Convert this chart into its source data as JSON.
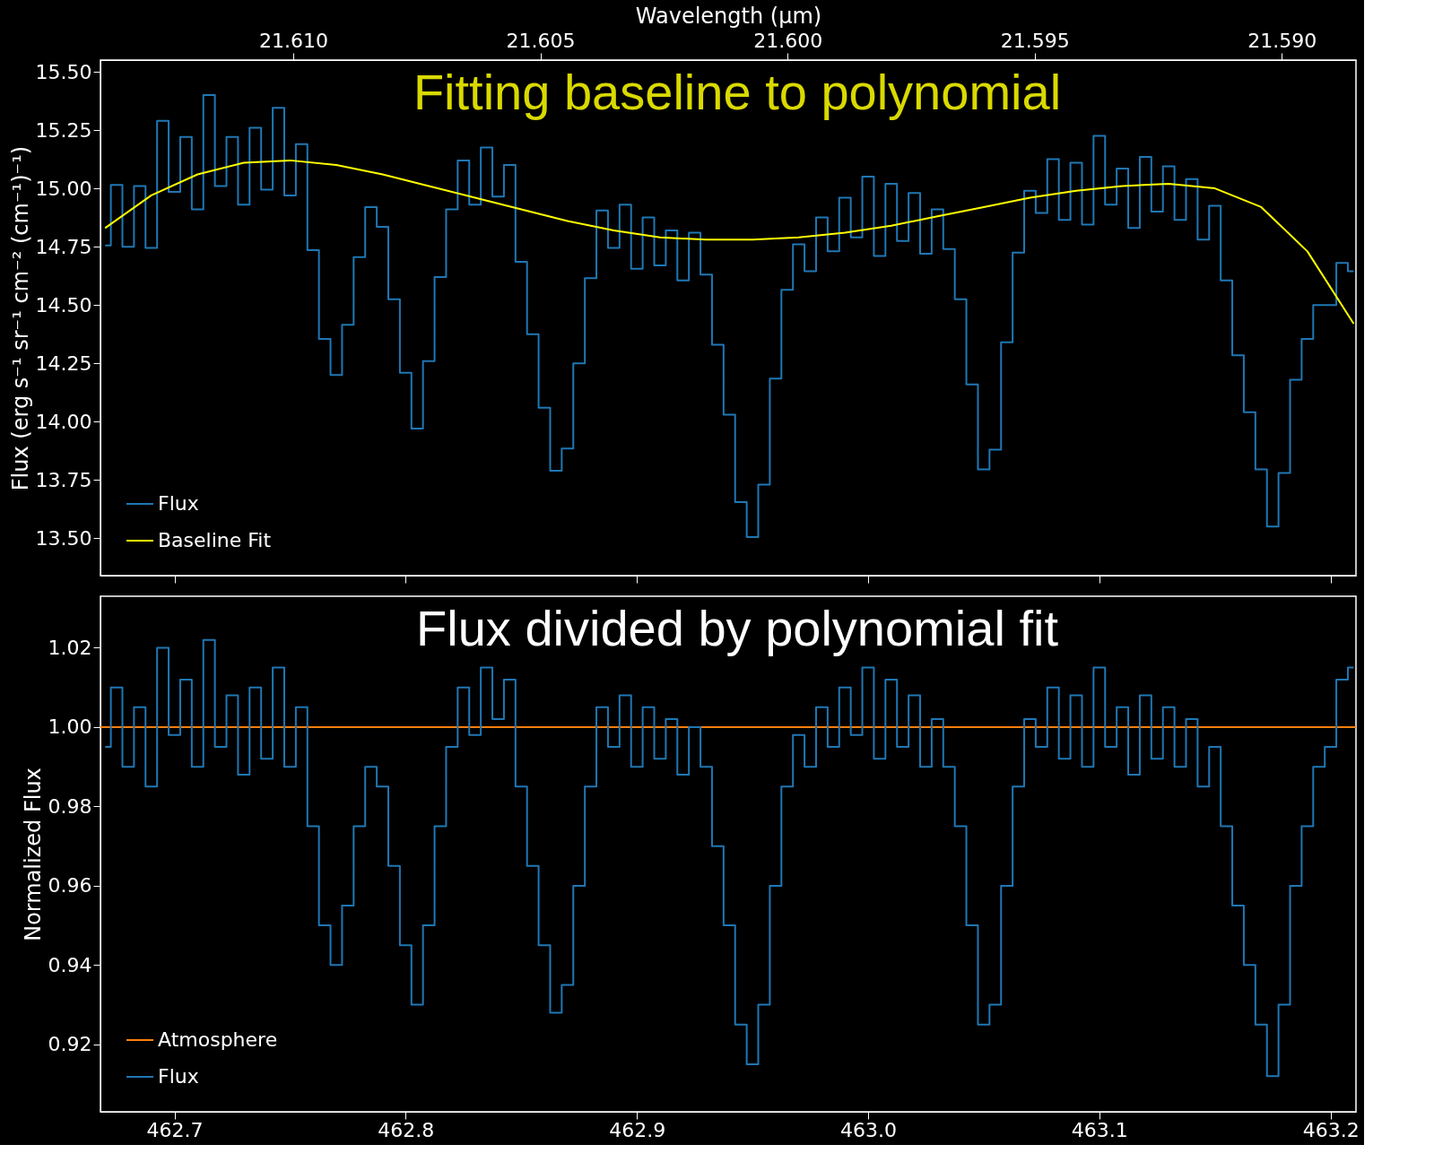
{
  "chart_data": [
    {
      "type": "step",
      "title": "Fitting baseline to polynomial",
      "ylabel": "Flux (erg s⁻¹ sr⁻¹ cm⁻² (cm⁻¹)⁻¹)",
      "x2label": "Wavelength (µm)",
      "xlim": [
        462.668,
        463.211
      ],
      "xticks": [
        {
          "value": 462.7,
          "label": null
        },
        {
          "value": 462.8,
          "label": null
        },
        {
          "value": 462.9,
          "label": null
        },
        {
          "value": 463.0,
          "label": null
        },
        {
          "value": 463.1,
          "label": null
        },
        {
          "value": 463.2,
          "label": null
        }
      ],
      "x2lim": [
        21.6139,
        21.5885
      ],
      "x2ticks": [
        {
          "value": 21.61,
          "label": "21.610"
        },
        {
          "value": 21.605,
          "label": "21.605"
        },
        {
          "value": 21.6,
          "label": "21.600"
        },
        {
          "value": 21.595,
          "label": "21.595"
        },
        {
          "value": 21.59,
          "label": "21.590"
        }
      ],
      "ylim": [
        13.34,
        15.55
      ],
      "yticks": [
        {
          "value": 13.5,
          "label": "13.50"
        },
        {
          "value": 13.75,
          "label": "13.75"
        },
        {
          "value": 14.0,
          "label": "14.00"
        },
        {
          "value": 14.25,
          "label": "14.25"
        },
        {
          "value": 14.5,
          "label": "14.50"
        },
        {
          "value": 14.75,
          "label": "14.75"
        },
        {
          "value": 15.0,
          "label": "15.00"
        },
        {
          "value": 15.25,
          "label": "15.25"
        },
        {
          "value": 15.5,
          "label": "15.50"
        }
      ],
      "tick_labels": "y",
      "grid": false,
      "legend": "bottom left",
      "series": [
        {
          "name": "Flux",
          "color": "#1f77b4",
          "x": [
            462.67,
            462.675,
            462.68,
            462.685,
            462.69,
            462.695,
            462.7,
            462.705,
            462.71,
            462.715,
            462.72,
            462.725,
            462.73,
            462.735,
            462.74,
            462.745,
            462.75,
            462.755,
            462.76,
            462.765,
            462.77,
            462.775,
            462.78,
            462.785,
            462.79,
            462.795,
            462.8,
            462.805,
            462.81,
            462.815,
            462.82,
            462.825,
            462.83,
            462.835,
            462.84,
            462.845,
            462.85,
            462.855,
            462.86,
            462.865,
            462.87,
            462.875,
            462.88,
            462.885,
            462.89,
            462.895,
            462.9,
            462.905,
            462.91,
            462.915,
            462.92,
            462.925,
            462.93,
            462.935,
            462.94,
            462.945,
            462.95,
            462.955,
            462.96,
            462.965,
            462.97,
            462.975,
            462.98,
            462.985,
            462.99,
            462.995,
            463.0,
            463.005,
            463.01,
            463.015,
            463.02,
            463.025,
            463.03,
            463.035,
            463.04,
            463.045,
            463.05,
            463.055,
            463.06,
            463.065,
            463.07,
            463.075,
            463.08,
            463.085,
            463.09,
            463.095,
            463.1,
            463.105,
            463.11,
            463.115,
            463.12,
            463.125,
            463.13,
            463.135,
            463.14,
            463.145,
            463.15,
            463.155,
            463.16,
            463.165,
            463.17,
            463.175,
            463.18,
            463.185,
            463.19,
            463.195,
            463.2,
            463.205,
            463.21
          ],
          "values": [
            14.755,
            15.015,
            14.75,
            15.01,
            14.745,
            15.29,
            14.985,
            15.22,
            14.91,
            15.4,
            15.01,
            15.22,
            14.93,
            15.26,
            14.995,
            15.345,
            14.97,
            15.19,
            14.735,
            14.355,
            14.2,
            14.415,
            14.705,
            14.92,
            14.835,
            14.525,
            14.21,
            13.97,
            14.26,
            14.62,
            14.91,
            15.12,
            14.93,
            15.175,
            14.965,
            15.1,
            14.685,
            14.375,
            14.06,
            13.79,
            13.885,
            14.25,
            14.615,
            14.905,
            14.745,
            14.93,
            14.655,
            14.875,
            14.67,
            14.82,
            14.605,
            14.81,
            14.63,
            14.33,
            14.03,
            13.655,
            13.505,
            13.73,
            14.185,
            14.565,
            14.76,
            14.645,
            14.875,
            14.73,
            14.96,
            14.79,
            15.05,
            14.71,
            15.02,
            14.775,
            14.98,
            14.72,
            14.91,
            14.74,
            14.525,
            14.16,
            13.795,
            13.88,
            14.34,
            14.725,
            14.99,
            14.895,
            15.125,
            14.865,
            15.11,
            14.845,
            15.225,
            14.93,
            15.085,
            14.83,
            15.135,
            14.9,
            15.095,
            14.865,
            15.04,
            14.78,
            14.925,
            14.605,
            14.285,
            14.04,
            13.795,
            13.55,
            13.78,
            14.18,
            14.355,
            14.5,
            14.5,
            14.68,
            14.645
          ]
        },
        {
          "name": "Baseline Fit",
          "type": "line",
          "color": "#ffff00",
          "x": [
            462.67,
            462.69,
            462.71,
            462.73,
            462.75,
            462.77,
            462.79,
            462.81,
            462.83,
            462.85,
            462.87,
            462.89,
            462.91,
            462.93,
            462.95,
            462.97,
            462.99,
            463.01,
            463.03,
            463.05,
            463.07,
            463.09,
            463.11,
            463.13,
            463.15,
            463.17,
            463.19,
            463.21
          ],
          "values": [
            14.83,
            14.97,
            15.06,
            15.11,
            15.12,
            15.1,
            15.06,
            15.01,
            14.96,
            14.91,
            14.86,
            14.82,
            14.79,
            14.78,
            14.78,
            14.79,
            14.81,
            14.84,
            14.88,
            14.92,
            14.96,
            14.99,
            15.01,
            15.02,
            15.0,
            14.92,
            14.73,
            14.42
          ]
        }
      ]
    },
    {
      "type": "step",
      "title": "Flux divided by polynomial fit",
      "ylabel": "Normalized Flux",
      "xlim": [
        462.668,
        463.211
      ],
      "xticks": [
        {
          "value": 462.7,
          "label": "462.7"
        },
        {
          "value": 462.8,
          "label": "462.8"
        },
        {
          "value": 462.9,
          "label": "462.9"
        },
        {
          "value": 463.0,
          "label": "463.0"
        },
        {
          "value": 463.1,
          "label": "463.1"
        },
        {
          "value": 463.2,
          "label": "463.2"
        }
      ],
      "ylim": [
        0.903,
        1.033
      ],
      "yticks": [
        {
          "value": 0.92,
          "label": "0.92"
        },
        {
          "value": 0.94,
          "label": "0.94"
        },
        {
          "value": 0.96,
          "label": "0.96"
        },
        {
          "value": 0.98,
          "label": "0.98"
        },
        {
          "value": 1.0,
          "label": "1.00"
        },
        {
          "value": 1.02,
          "label": "1.02"
        }
      ],
      "grid": false,
      "legend": "bottom left",
      "series": [
        {
          "name": "Atmosphere",
          "type": "line",
          "color": "#ff7f0e",
          "x": [
            462.668,
            463.211
          ],
          "values": [
            1.0,
            1.0
          ]
        },
        {
          "name": "Flux",
          "color": "#1f77b4",
          "x": [
            462.67,
            462.675,
            462.68,
            462.685,
            462.69,
            462.695,
            462.7,
            462.705,
            462.71,
            462.715,
            462.72,
            462.725,
            462.73,
            462.735,
            462.74,
            462.745,
            462.75,
            462.755,
            462.76,
            462.765,
            462.77,
            462.775,
            462.78,
            462.785,
            462.79,
            462.795,
            462.8,
            462.805,
            462.81,
            462.815,
            462.82,
            462.825,
            462.83,
            462.835,
            462.84,
            462.845,
            462.85,
            462.855,
            462.86,
            462.865,
            462.87,
            462.875,
            462.88,
            462.885,
            462.89,
            462.895,
            462.9,
            462.905,
            462.91,
            462.915,
            462.92,
            462.925,
            462.93,
            462.935,
            462.94,
            462.945,
            462.95,
            462.955,
            462.96,
            462.965,
            462.97,
            462.975,
            462.98,
            462.985,
            462.99,
            462.995,
            463.0,
            463.005,
            463.01,
            463.015,
            463.02,
            463.025,
            463.03,
            463.035,
            463.04,
            463.045,
            463.05,
            463.055,
            463.06,
            463.065,
            463.07,
            463.075,
            463.08,
            463.085,
            463.09,
            463.095,
            463.1,
            463.105,
            463.11,
            463.115,
            463.12,
            463.125,
            463.13,
            463.135,
            463.14,
            463.145,
            463.15,
            463.155,
            463.16,
            463.165,
            463.17,
            463.175,
            463.18,
            463.185,
            463.19,
            463.195,
            463.2,
            463.205,
            463.21
          ],
          "values": [
            0.995,
            1.01,
            0.99,
            1.005,
            0.985,
            1.02,
            0.998,
            1.012,
            0.99,
            1.022,
            0.995,
            1.008,
            0.988,
            1.01,
            0.992,
            1.015,
            0.99,
            1.005,
            0.975,
            0.95,
            0.94,
            0.955,
            0.975,
            0.99,
            0.985,
            0.965,
            0.945,
            0.93,
            0.95,
            0.975,
            0.995,
            1.01,
            0.998,
            1.015,
            1.002,
            1.012,
            0.985,
            0.965,
            0.945,
            0.928,
            0.935,
            0.96,
            0.985,
            1.005,
            0.995,
            1.008,
            0.99,
            1.005,
            0.992,
            1.002,
            0.988,
            1.0,
            0.99,
            0.97,
            0.95,
            0.925,
            0.915,
            0.93,
            0.96,
            0.985,
            0.998,
            0.99,
            1.005,
            0.995,
            1.01,
            0.998,
            1.015,
            0.992,
            1.012,
            0.995,
            1.008,
            0.99,
            1.002,
            0.99,
            0.975,
            0.95,
            0.925,
            0.93,
            0.96,
            0.985,
            1.002,
            0.995,
            1.01,
            0.992,
            1.008,
            0.99,
            1.015,
            0.995,
            1.005,
            0.988,
            1.008,
            0.992,
            1.005,
            0.99,
            1.002,
            0.985,
            0.995,
            0.975,
            0.955,
            0.94,
            0.925,
            0.912,
            0.93,
            0.96,
            0.975,
            0.99,
            0.995,
            1.012,
            1.015
          ]
        }
      ]
    }
  ]
}
